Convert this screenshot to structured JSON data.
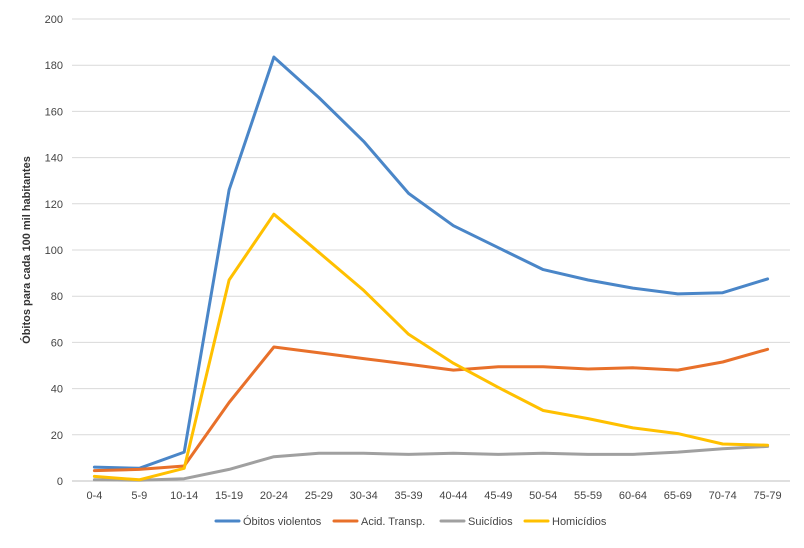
{
  "chart_data": {
    "type": "line",
    "title": "",
    "xlabel": "",
    "ylabel": "Óbitos para cada 100 mil habitantes",
    "ylim": [
      0,
      200
    ],
    "yticks": [
      0,
      20,
      40,
      60,
      80,
      100,
      120,
      140,
      160,
      180,
      200
    ],
    "grid": true,
    "legend_position": "bottom",
    "categories": [
      "0-4",
      "5-9",
      "10-14",
      "15-19",
      "20-24",
      "25-29",
      "30-34",
      "35-39",
      "40-44",
      "45-49",
      "50-54",
      "55-59",
      "60-64",
      "65-69",
      "70-74",
      "75-79"
    ],
    "series": [
      {
        "name": "Óbitos violentos",
        "color": "#4a86c8",
        "values": [
          6,
          5.5,
          12.5,
          126,
          183.5,
          166,
          147,
          124.5,
          110.5,
          101,
          91.5,
          87,
          83.5,
          81,
          81.5,
          87.5
        ]
      },
      {
        "name": "Acid. Transp.",
        "color": "#e8702a",
        "values": [
          4.5,
          5,
          6.5,
          34,
          58,
          55.5,
          53,
          50.5,
          48,
          49.5,
          49.5,
          48.5,
          49,
          48,
          51.5,
          57
        ]
      },
      {
        "name": "Suicídios",
        "color": "#a0a0a0",
        "values": [
          0.5,
          0.3,
          1,
          5,
          10.5,
          12,
          12,
          11.5,
          12,
          11.5,
          12,
          11.5,
          11.5,
          12.5,
          14,
          15
        ]
      },
      {
        "name": "Homicídios",
        "color": "#ffc000",
        "values": [
          2,
          0.5,
          5.5,
          87,
          115.5,
          99,
          82.5,
          63.5,
          51,
          40.5,
          30.5,
          27,
          23,
          20.5,
          16,
          15.5
        ]
      }
    ]
  }
}
